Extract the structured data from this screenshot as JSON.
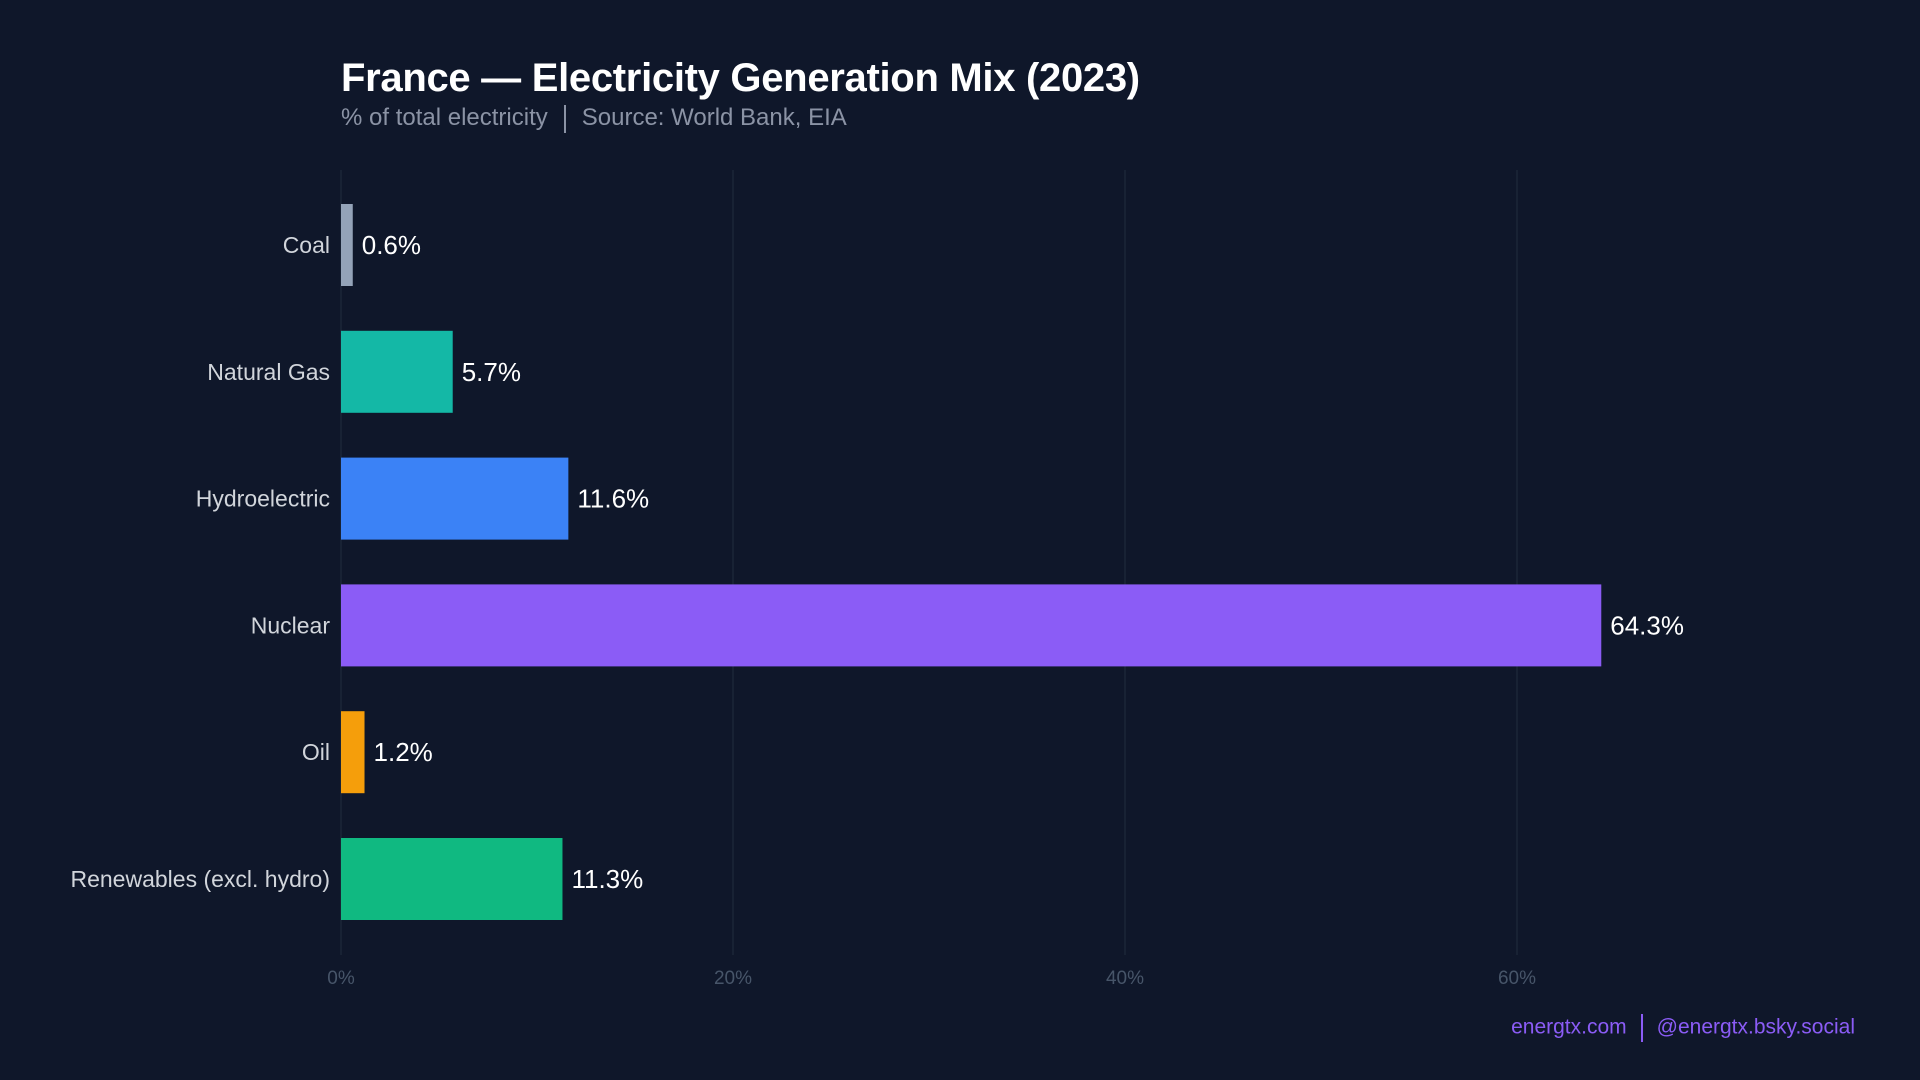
{
  "chart_data": {
    "type": "bar",
    "orientation": "horizontal",
    "title": "France — Electricity Generation Mix (2023)",
    "subtitle_left": "% of total electricity",
    "subtitle_right": "Source: World Bank, EIA",
    "categories": [
      "Coal",
      "Natural Gas",
      "Hydroelectric",
      "Nuclear",
      "Oil",
      "Renewables (excl. hydro)"
    ],
    "values": [
      0.6,
      5.7,
      11.6,
      64.3,
      1.2,
      11.3
    ],
    "value_labels": [
      "0.6%",
      "5.7%",
      "11.6%",
      "64.3%",
      "1.2%",
      "11.3%"
    ],
    "colors": [
      "#94a3b8",
      "#14b8a6",
      "#3b82f6",
      "#8b5cf6",
      "#f59e0b",
      "#10b981"
    ],
    "xlim": [
      0,
      80
    ],
    "x_ticks": [
      0,
      20,
      40,
      60
    ],
    "x_tick_labels": [
      "0%",
      "20%",
      "40%",
      "60%"
    ],
    "grid": "vertical",
    "background": "#0f172a"
  },
  "footer": {
    "site": "energtx.com",
    "social": "@energtx.bsky.social"
  }
}
